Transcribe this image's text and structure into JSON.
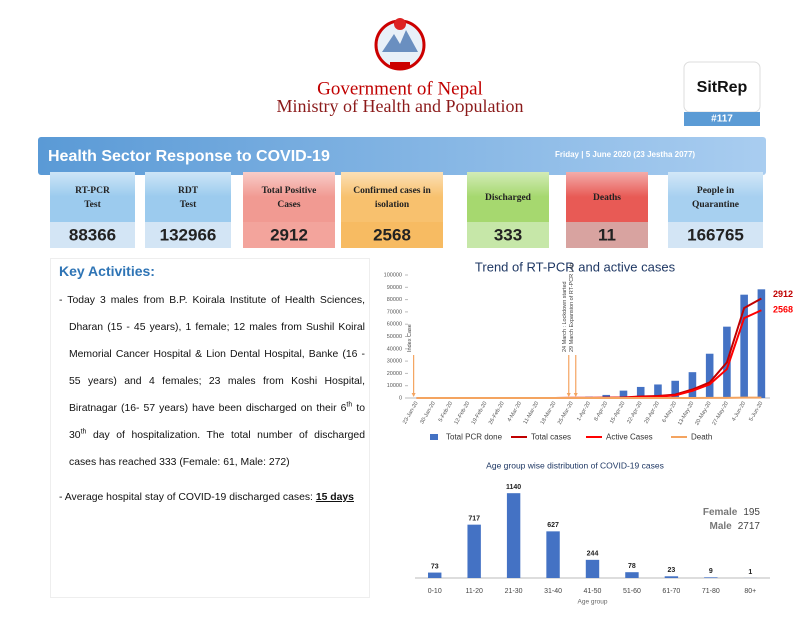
{
  "header": {
    "org": "Government of Nepal",
    "ministry": "Ministry of Health and Population",
    "badge": "SitRep",
    "number": "#117"
  },
  "banner": {
    "title": "Health Sector Response to COVID-19",
    "date": "Friday | 5 June 2020 (23 Jestha 2077)"
  },
  "stats": [
    {
      "label": [
        "RT-PCR",
        "Test"
      ],
      "value": 88366,
      "color": "#9ccbee",
      "value_color": "#d3e5f5"
    },
    {
      "label": [
        "RDT",
        "Test"
      ],
      "value": 132966,
      "color": "#9ccbee",
      "value_color": "#d3e5f5"
    },
    {
      "label": [
        "Total Positive",
        "Cases"
      ],
      "value": 2912,
      "color": "#f19a92",
      "value_color": "#f3a49c"
    },
    {
      "label": [
        "Confirmed cases in",
        "isolation"
      ],
      "value": 2568,
      "color": "#f8c16e",
      "value_color": "#f7bb62"
    },
    {
      "label": [
        "Discharged"
      ],
      "value": 333,
      "color": "#a6d86f",
      "value_color": "#c6e7a8"
    },
    {
      "label": [
        "Deaths"
      ],
      "value": 11,
      "color": "#e85a55",
      "value_color": "#d8a3a0"
    },
    {
      "label": [
        "People in",
        "Quarantine"
      ],
      "value": 166765,
      "color": "#a7d0f0",
      "value_color": "#d3e5f5"
    }
  ],
  "activities": {
    "title": "Key Activities:",
    "items": [
      [
        "Today 3 males from B.P. Koirala Institute of Health Sciences, Dharan (15 - 45 years), 1 female; 12 males from Sushil Koiral Memorial Cancer Hospital & Lion Dental Hospital, Banke (16 - 55 years) and 4 females; 23 males from Koshi Hospital, Biratnagar (16- 57 years) have been discharged on their 6",
        "th",
        " to 30",
        "th",
        " day of hospitalization. The total number of discharged cases has reached 333  (Female: 61, Male: 272)"
      ],
      [
        "Average hospital stay of COVID-19 discharged cases: ",
        "15 days"
      ]
    ]
  },
  "chart_data": [
    {
      "type": "combo",
      "title": "Trend of RT-PCR and active cases",
      "categories": [
        "23-Jan-20",
        "30-Jan-20",
        "5-Feb-20",
        "12-Feb-20",
        "19-Feb-20",
        "26-Feb-20",
        "4-Mar-20",
        "11-Mar-20",
        "18-Mar-20",
        "25-Mar-20",
        "1-Apr-20",
        "8-Apr-20",
        "15-Apr-20",
        "22-Apr-20",
        "29-Apr-20",
        "6-May-20",
        "13-May-20",
        "20-May-20",
        "27-May-20",
        "4-Jun-20",
        "5-Jun-20"
      ],
      "series": [
        {
          "name": "Total PCR done",
          "kind": "bar",
          "color": "#4472c4",
          "values": [
            0,
            0,
            0,
            0,
            0,
            0,
            0,
            0,
            0,
            0,
            1000,
            2500,
            6000,
            9000,
            11000,
            14000,
            21000,
            36000,
            58000,
            84000,
            88366
          ]
        },
        {
          "name": "Total  cases",
          "kind": "line",
          "axis": "y2",
          "color": "#c00000",
          "values": [
            1,
            1,
            1,
            1,
            1,
            1,
            1,
            1,
            1,
            3,
            5,
            9,
            16,
            45,
            57,
            99,
            249,
            456,
            1042,
            2634,
            2912
          ]
        },
        {
          "name": "Active Cases",
          "kind": "line",
          "axis": "y2",
          "color": "#ff0000",
          "values": [
            0,
            0,
            0,
            0,
            0,
            0,
            0,
            0,
            0,
            2,
            4,
            8,
            12,
            29,
            41,
            77,
            212,
            399,
            846,
            2339,
            2568
          ]
        },
        {
          "name": "Death",
          "kind": "line",
          "axis": "y2",
          "color": "#f4a460",
          "values": [
            0,
            0,
            0,
            0,
            0,
            0,
            0,
            0,
            0,
            0,
            0,
            0,
            0,
            0,
            0,
            0,
            0,
            3,
            5,
            10,
            11
          ]
        }
      ],
      "ylim": [
        0,
        100000
      ],
      "yticks": [
        0,
        10000,
        20000,
        30000,
        40000,
        50000,
        60000,
        70000,
        80000,
        90000,
        100000
      ],
      "y2lim": [
        0,
        3600
      ],
      "legend": "bottom",
      "annotations": [
        {
          "text": "Index Case",
          "x": "23-Jan-20"
        },
        {
          "text": "24 March : Lockdown started",
          "x": "25-Mar-20"
        },
        {
          "text": "29 March Expansion of RT-PCR Lab",
          "x": "25-Mar-20"
        }
      ]
    },
    {
      "type": "bar",
      "title": "Age group wise distribution of COVID-19 cases",
      "x_label": "Age group",
      "categories": [
        "0-10",
        "11-20",
        "21-30",
        "31-40",
        "41-50",
        "51-60",
        "61-70",
        "71-80",
        "80+"
      ],
      "values": [
        73,
        717,
        1140,
        627,
        244,
        78,
        23,
        9,
        1
      ],
      "color": "#4472c4",
      "ylim": [
        0,
        1250
      ],
      "notes": [
        {
          "label": "Female",
          "value": 195
        },
        {
          "label": "Male",
          "value": 2717
        }
      ]
    }
  ]
}
